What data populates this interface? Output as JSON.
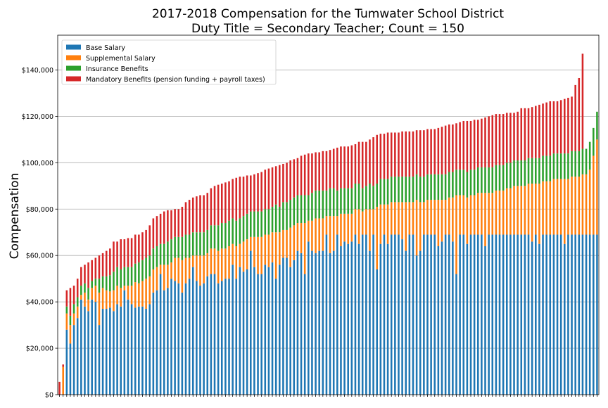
{
  "chart_data": {
    "type": "bar",
    "stacked": true,
    "title_line1": "2017-2018 Compensation for the Tumwater School District",
    "title_line2": "Duty Title = Secondary Teacher; Count = 150",
    "ylabel": "Compensation",
    "xlabel": "",
    "ylim": [
      0,
      155000
    ],
    "yticks": [
      0,
      20000,
      40000,
      60000,
      80000,
      100000,
      120000,
      140000
    ],
    "ytick_labels": [
      "$0",
      "$20,000",
      "$40,000",
      "$60,000",
      "$80,000",
      "$100,000",
      "$120,000",
      "$140,000"
    ],
    "grid": "horizontal",
    "legend_position": "top-left",
    "n_bars": 150,
    "colors": {
      "base": "#1f77b4",
      "supplemental": "#ff7f0e",
      "insurance": "#2ca02c",
      "mandatory": "#d62728",
      "grid": "#b0b0b0"
    },
    "series": [
      {
        "name": "Base Salary",
        "key": "base"
      },
      {
        "name": "Supplemental Salary",
        "key": "supplemental"
      },
      {
        "name": "Insurance Benefits",
        "key": "insurance"
      },
      {
        "name": "Mandatory Benefits (pension funding + payroll taxes)",
        "key": "mandatory"
      }
    ],
    "totals": [
      5500,
      13000,
      45000,
      46000,
      47000,
      50000,
      55000,
      56000,
      57000,
      58000,
      59000,
      60000,
      61000,
      62000,
      63000,
      66000,
      66000,
      67000,
      67000,
      67500,
      67500,
      69000,
      69000,
      70000,
      71000,
      73000,
      76000,
      77000,
      78000,
      79000,
      79500,
      79500,
      80000,
      80000,
      81000,
      83000,
      84000,
      85000,
      85500,
      86000,
      86000,
      87000,
      89000,
      90000,
      90500,
      91000,
      91500,
      92000,
      93000,
      93500,
      94000,
      94000,
      94500,
      94500,
      95000,
      95500,
      96000,
      97000,
      97500,
      98000,
      98500,
      99000,
      99500,
      100000,
      101000,
      101500,
      102000,
      103000,
      103500,
      104000,
      104000,
      104500,
      104500,
      105000,
      105000,
      105500,
      106000,
      106500,
      107000,
      107000,
      107000,
      107500,
      108000,
      109000,
      109000,
      109000,
      110000,
      111000,
      112000,
      112500,
      112500,
      113000,
      113000,
      113000,
      113000,
      113500,
      113500,
      113500,
      113500,
      114000,
      114000,
      114000,
      114500,
      114500,
      114500,
      115000,
      115500,
      116000,
      116500,
      116500,
      117000,
      117500,
      118000,
      118000,
      118000,
      118500,
      118500,
      119000,
      119500,
      120000,
      120500,
      121000,
      121000,
      121000,
      121500,
      121500,
      121500,
      122000,
      123500,
      123500,
      123500,
      124000,
      124500,
      125000,
      125500,
      126000,
      126500,
      126500,
      126500,
      127000,
      127500,
      128000,
      128500,
      133500,
      136500,
      147000
    ],
    "base": [
      0,
      0,
      28000,
      22000,
      30000,
      33000,
      41000,
      38000,
      36000,
      41000,
      40000,
      30000,
      37000,
      37000,
      37500,
      36000,
      39000,
      38000,
      45000,
      41000,
      39000,
      37500,
      38000,
      38000,
      37000,
      39000,
      44000,
      45000,
      52000,
      45000,
      46000,
      50000,
      49000,
      48000,
      44000,
      48000,
      50000,
      55000,
      49000,
      47000,
      48000,
      51000,
      52000,
      52000,
      48000,
      49000,
      50000,
      50000,
      56000,
      50000,
      55000,
      53000,
      54000,
      62000,
      55000,
      52000,
      52000,
      56000,
      55000,
      57000,
      50000,
      56000,
      59000,
      59000,
      55000,
      58000,
      62000,
      61000,
      52000,
      66000,
      62000,
      61000,
      62000,
      62000,
      69000,
      61000,
      62000,
      69000,
      64000,
      66000,
      65000,
      66000,
      69000,
      65000,
      69000,
      69000,
      62000,
      69000,
      54000,
      65000,
      69000,
      65000,
      69000,
      69000,
      69000,
      67000,
      62000,
      69000,
      69000,
      60000,
      62000,
      69000,
      69000,
      69000,
      69000,
      64000,
      66000,
      69000,
      69000,
      66000,
      52000,
      69000,
      69000,
      65000,
      69000,
      69000,
      69000,
      69000,
      64000,
      69000,
      69000,
      69000,
      69000,
      69000,
      69000,
      69000,
      69000,
      69000,
      69000,
      69000,
      69000,
      66000,
      69000,
      65000,
      69000,
      69000,
      69000,
      69000,
      69000,
      69000,
      65000,
      69000,
      69000,
      69000,
      69000,
      69000,
      69000,
      69000,
      69000,
      69000
    ],
    "supplemental": [
      0,
      12000,
      7000,
      8000,
      5000,
      5000,
      2000,
      6000,
      5000,
      5000,
      7000,
      14000,
      9000,
      8000,
      7000,
      9000,
      8000,
      8000,
      2000,
      6000,
      8000,
      11000,
      10000,
      11000,
      13000,
      12000,
      10000,
      10000,
      4000,
      11000,
      10000,
      7000,
      10000,
      11000,
      14000,
      11000,
      9000,
      5000,
      11000,
      13000,
      12000,
      10000,
      11000,
      11000,
      14000,
      14000,
      13000,
      14000,
      9000,
      14000,
      10000,
      13000,
      13000,
      6000,
      13000,
      16000,
      16000,
      13000,
      14000,
      13000,
      20000,
      14000,
      12000,
      12000,
      17000,
      15000,
      12000,
      13000,
      22000,
      9000,
      13000,
      15000,
      14000,
      14000,
      8000,
      16000,
      15000,
      8000,
      14000,
      12000,
      13000,
      12000,
      11000,
      15000,
      10000,
      11000,
      18000,
      11000,
      27000,
      17000,
      13000,
      17000,
      14000,
      14000,
      14000,
      16000,
      21000,
      14000,
      14000,
      24000,
      21000,
      14000,
      15000,
      15000,
      15000,
      20000,
      18000,
      15000,
      16000,
      19000,
      34000,
      17000,
      17000,
      20000,
      17000,
      17000,
      18000,
      18000,
      23000,
      18000,
      18000,
      19000,
      19000,
      19000,
      20000,
      20000,
      21000,
      21000,
      21000,
      21000,
      22000,
      25000,
      22000,
      26000,
      23000,
      23000,
      23000,
      24000,
      24000,
      24000,
      28000,
      24000,
      25000,
      25000,
      25000,
      26000,
      26000,
      28000,
      34000,
      41000
    ],
    "insurance": [
      0,
      0,
      3000,
      4000,
      4000,
      4000,
      4000,
      4000,
      5000,
      3000,
      3000,
      6000,
      5000,
      6000,
      7000,
      8000,
      8000,
      8000,
      8000,
      8000,
      8000,
      8000,
      9000,
      9000,
      9000,
      9000,
      9000,
      9000,
      9000,
      9000,
      10000,
      10000,
      9000,
      9000,
      10000,
      10000,
      10000,
      10000,
      10000,
      10000,
      10000,
      10000,
      10000,
      10000,
      11000,
      11000,
      11000,
      11000,
      11000,
      11000,
      11000,
      11000,
      11000,
      11000,
      11000,
      11000,
      11000,
      11000,
      11000,
      11000,
      12000,
      11000,
      12000,
      12000,
      12000,
      12000,
      12000,
      12000,
      12000,
      11000,
      12000,
      12000,
      12000,
      12000,
      11000,
      12000,
      12000,
      11000,
      11000,
      11000,
      11000,
      11000,
      11000,
      11000,
      10000,
      10000,
      11000,
      10000,
      10000,
      11000,
      11000,
      11000,
      11000,
      11000,
      11000,
      11000,
      11000,
      11000,
      11000,
      11000,
      11000,
      11000,
      11000,
      11000,
      11000,
      11000,
      11000,
      11000,
      11000,
      11000,
      11000,
      11000,
      11000,
      11000,
      11000,
      11000,
      11000,
      11000,
      11000,
      11000,
      11000,
      11000,
      11000,
      11000,
      11000,
      11000,
      11000,
      11000,
      11000,
      11000,
      11000,
      11000,
      11000,
      11000,
      11000,
      11000,
      11000,
      11000,
      11000,
      11000,
      11000,
      11000,
      11000,
      11000,
      11000,
      11000,
      11000,
      12000,
      12000,
      12000
    ]
  }
}
